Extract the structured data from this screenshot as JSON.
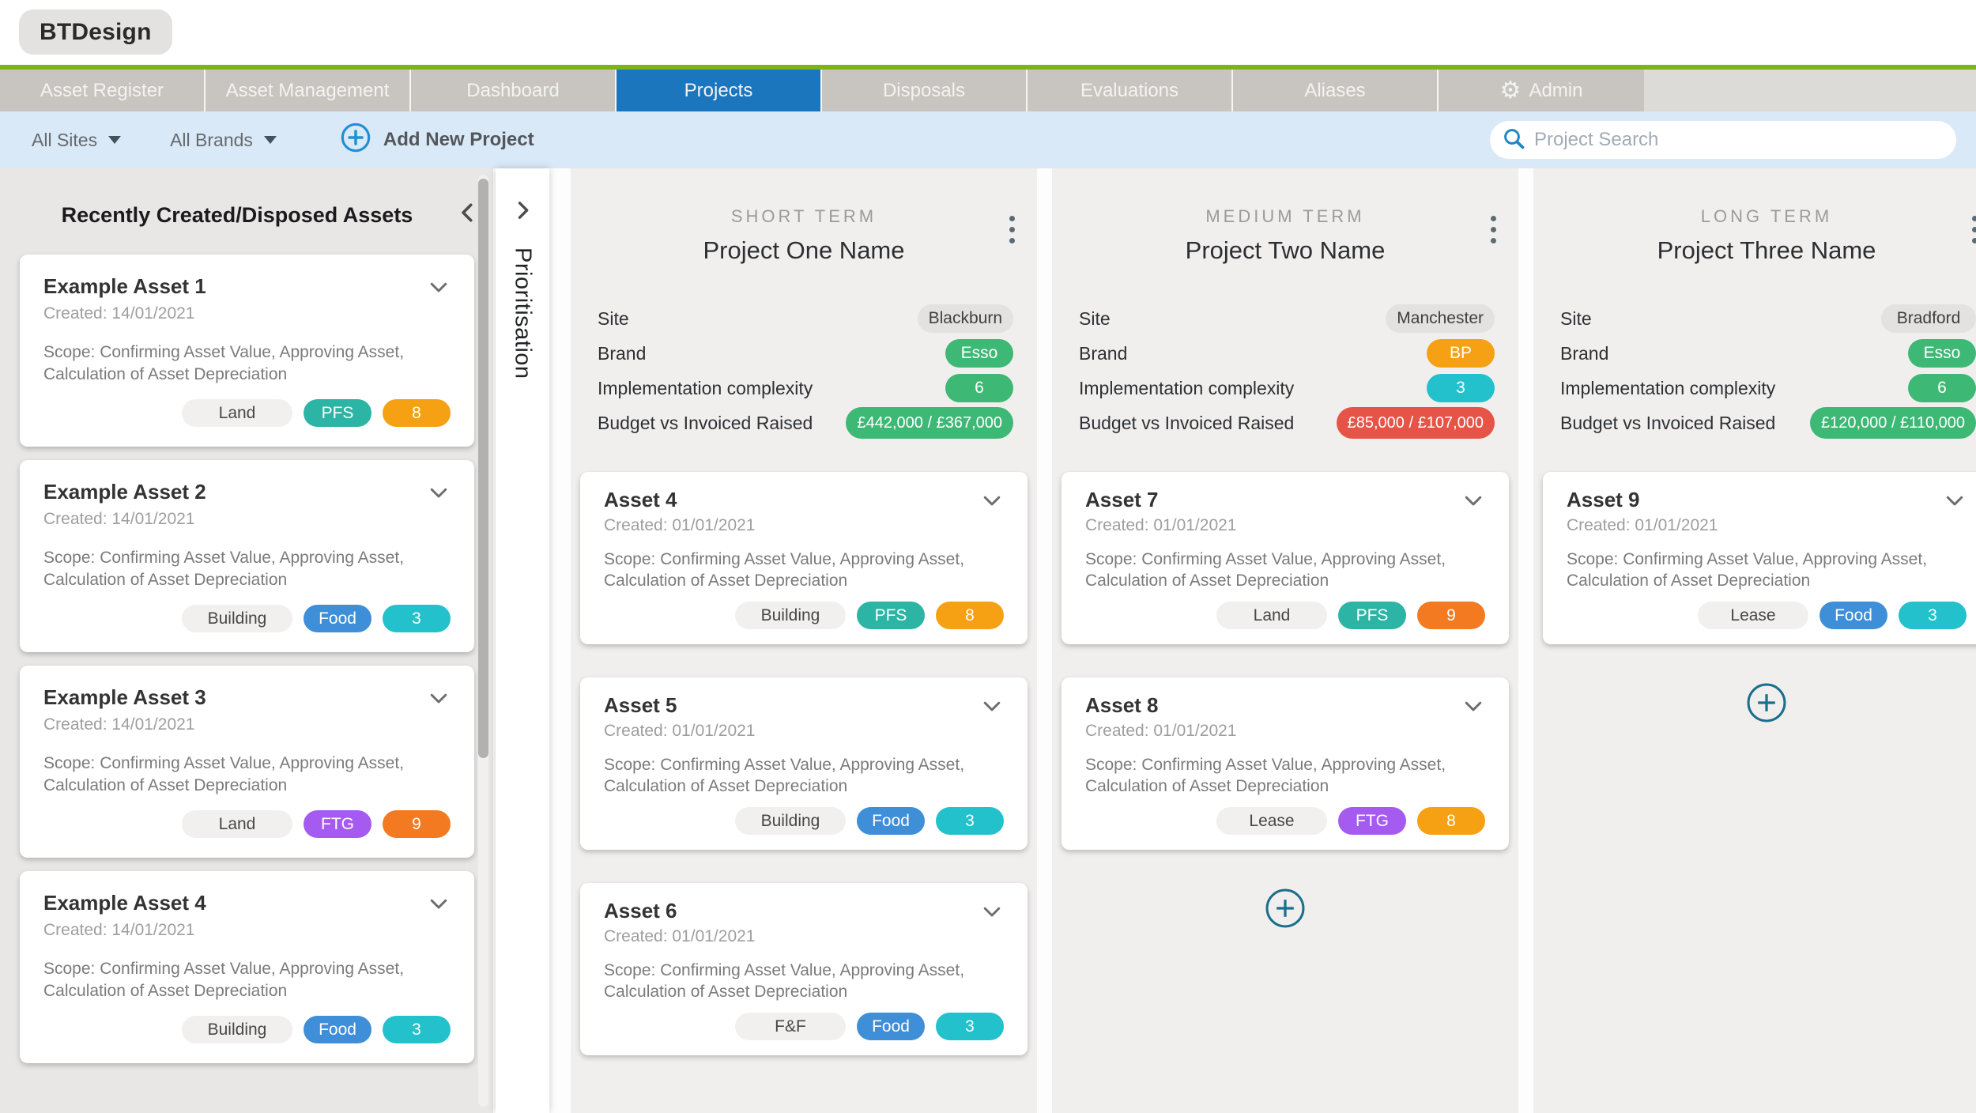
{
  "app": {
    "logo": "BTDesign"
  },
  "nav": {
    "tabs": [
      {
        "label": "Asset Register",
        "active": false
      },
      {
        "label": "Asset Management",
        "active": false
      },
      {
        "label": "Dashboard",
        "active": false
      },
      {
        "label": "Projects",
        "active": true
      },
      {
        "label": "Disposals",
        "active": false
      },
      {
        "label": "Evaluations",
        "active": false
      },
      {
        "label": "Aliases",
        "active": false
      },
      {
        "label": "Admin",
        "active": false,
        "icon": "gear-icon"
      }
    ]
  },
  "filter_bar": {
    "site_filter": "All Sites",
    "brand_filter": "All Brands",
    "add_button": "Add New Project",
    "search_placeholder": "Project Search",
    "search_value": ""
  },
  "sidebar": {
    "title": "Recently Created/Disposed Assets",
    "cards": [
      {
        "title": "Example Asset 1",
        "created": "Created: 14/01/2021",
        "scope": "Scope: Confirming Asset Value, Approving Asset, Calculation of Asset Depreciation",
        "badges": [
          {
            "label": "Land",
            "type": "neutral"
          },
          {
            "label": "PFS",
            "type": "teal"
          },
          {
            "label": "8",
            "type": "amber"
          }
        ]
      },
      {
        "title": "Example Asset 2",
        "created": "Created: 14/01/2021",
        "scope": "Scope: Confirming Asset Value, Approving Asset, Calculation of Asset Depreciation",
        "badges": [
          {
            "label": "Building",
            "type": "neutral"
          },
          {
            "label": "Food",
            "type": "blue"
          },
          {
            "label": "3",
            "type": "cyan"
          }
        ]
      },
      {
        "title": "Example Asset 3",
        "created": "Created: 14/01/2021",
        "scope": "Scope: Confirming Asset Value, Approving Asset, Calculation of Asset Depreciation",
        "badges": [
          {
            "label": "Land",
            "type": "neutral"
          },
          {
            "label": "FTG",
            "type": "purple"
          },
          {
            "label": "9",
            "type": "orange"
          }
        ]
      },
      {
        "title": "Example Asset 4",
        "created": "Created: 14/01/2021",
        "scope": "Scope: Confirming Asset Value, Approving Asset, Calculation of Asset Depreciation",
        "badges": [
          {
            "label": "Building",
            "type": "neutral"
          },
          {
            "label": "Food",
            "type": "blue"
          },
          {
            "label": "3",
            "type": "cyan"
          }
        ]
      }
    ]
  },
  "prioritisation_panel": {
    "label": "Prioritisation"
  },
  "board": {
    "columns": [
      {
        "term": "SHORT TERM",
        "project_name": "Project One Name",
        "has_menu": true,
        "show_add": false,
        "fields": [
          {
            "label": "Site",
            "value": "Blackburn",
            "pill": "neutral",
            "wide": false
          },
          {
            "label": "Brand",
            "value": "Esso",
            "pill": "green",
            "wide": false
          },
          {
            "label": "Implementation complexity",
            "value": "6",
            "pill": "green",
            "wide": false
          },
          {
            "label": "Budget vs Invoiced Raised",
            "value": "£442,000 / £367,000",
            "pill": "green",
            "wide": true
          }
        ],
        "assets": [
          {
            "title": "Asset 4",
            "created": "Created: 01/01/2021",
            "scope": "Scope: Confirming Asset Value, Approving Asset, Calculation of Asset Depreciation",
            "badges": [
              {
                "label": "Building",
                "type": "neutral"
              },
              {
                "label": "PFS",
                "type": "teal"
              },
              {
                "label": "8",
                "type": "amber"
              }
            ]
          },
          {
            "title": "Asset 5",
            "created": "Created: 01/01/2021",
            "scope": "Scope: Confirming Asset Value, Approving Asset, Calculation of Asset Depreciation",
            "badges": [
              {
                "label": "Building",
                "type": "neutral"
              },
              {
                "label": "Food",
                "type": "blue"
              },
              {
                "label": "3",
                "type": "cyan"
              }
            ]
          },
          {
            "title": "Asset 6",
            "created": "Created: 01/01/2021",
            "scope": "Scope: Confirming Asset Value, Approving Asset, Calculation of Asset Depreciation",
            "badges": [
              {
                "label": "F&F",
                "type": "neutral"
              },
              {
                "label": "Food",
                "type": "blue"
              },
              {
                "label": "3",
                "type": "cyan"
              }
            ]
          }
        ]
      },
      {
        "term": "MEDIUM TERM",
        "project_name": "Project Two Name",
        "has_menu": true,
        "show_add": true,
        "fields": [
          {
            "label": "Site",
            "value": "Manchester",
            "pill": "neutral",
            "wide": false
          },
          {
            "label": "Brand",
            "value": "BP",
            "pill": "amber",
            "wide": false
          },
          {
            "label": "Implementation complexity",
            "value": "3",
            "pill": "cyan",
            "wide": false
          },
          {
            "label": "Budget vs Invoiced Raised",
            "value": "£85,000 / £107,000",
            "pill": "red",
            "wide": true
          }
        ],
        "assets": [
          {
            "title": "Asset 7",
            "created": "Created: 01/01/2021",
            "scope": "Scope: Confirming Asset Value, Approving Asset, Calculation of Asset Depreciation",
            "badges": [
              {
                "label": "Land",
                "type": "neutral"
              },
              {
                "label": "PFS",
                "type": "teal"
              },
              {
                "label": "9",
                "type": "orange"
              }
            ]
          },
          {
            "title": "Asset 8",
            "created": "Created: 01/01/2021",
            "scope": "Scope: Confirming Asset Value, Approving Asset, Calculation of Asset Depreciation",
            "badges": [
              {
                "label": "Lease",
                "type": "neutral"
              },
              {
                "label": "FTG",
                "type": "purple"
              },
              {
                "label": "8",
                "type": "amber"
              }
            ]
          }
        ]
      },
      {
        "term": "LONG TERM",
        "project_name": "Project Three Name",
        "has_menu": true,
        "show_add": true,
        "fields": [
          {
            "label": "Site",
            "value": "Bradford",
            "pill": "neutral",
            "wide": false
          },
          {
            "label": "Brand",
            "value": "Esso",
            "pill": "green",
            "wide": false
          },
          {
            "label": "Implementation complexity",
            "value": "6",
            "pill": "green",
            "wide": false
          },
          {
            "label": "Budget vs Invoiced Raised",
            "value": "£120,000 / £110,000",
            "pill": "green",
            "wide": true
          }
        ],
        "assets": [
          {
            "title": "Asset 9",
            "created": "Created: 01/01/2021",
            "scope": "Scope: Confirming Asset Value, Approving Asset, Calculation of Asset Depreciation",
            "badges": [
              {
                "label": "Lease",
                "type": "neutral"
              },
              {
                "label": "Food",
                "type": "blue"
              },
              {
                "label": "3",
                "type": "cyan"
              }
            ]
          }
        ]
      }
    ]
  },
  "colors": {
    "accent_green": "#7cb414",
    "nav_active_blue": "#1b76bd",
    "action_blue": "#2090d2",
    "add_button_teal": "#1b6e8c",
    "badge_teal": "#2cb5a4",
    "badge_green": "#3eb875",
    "badge_cyan": "#22c1cc",
    "badge_amber": "#f6a114",
    "badge_orange": "#f37a20",
    "badge_red": "#e65448",
    "badge_blue": "#3e8ed8",
    "badge_purple": "#a55bf0",
    "tab_gray": "#c8c5c1"
  }
}
